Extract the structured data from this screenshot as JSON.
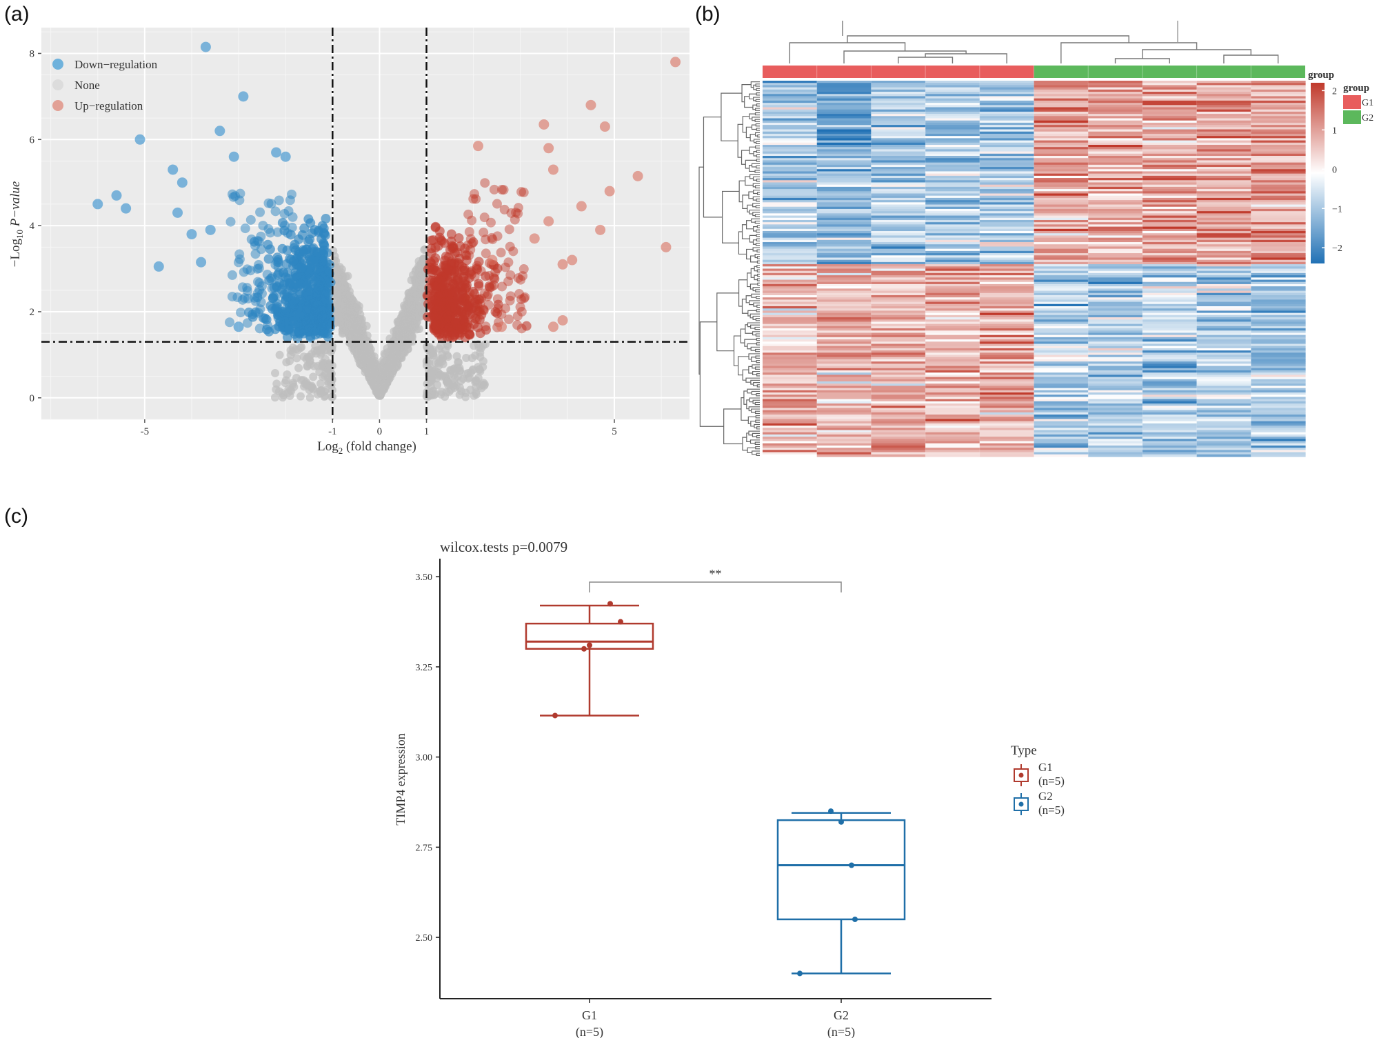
{
  "panel_labels": {
    "a": "(a)",
    "b": "(b)",
    "c": "(c)"
  },
  "chart_data": [
    {
      "id": "volcano",
      "type": "scatter",
      "title": "",
      "xlabel": "Log2 (fold change)",
      "xlabel_base": "Log",
      "xlabel_sub": "2",
      "xlabel_rest": " (fold change)",
      "ylabel": "-Log10 P-value",
      "ylabel_prefix": "−Log",
      "ylabel_sub": "10",
      "ylabel_italic": " P−value",
      "xlim": [
        -7.2,
        6.6
      ],
      "ylim": [
        -0.5,
        8.6
      ],
      "x_ticks": [
        -5,
        -1,
        0,
        1,
        5
      ],
      "x_tick_labels": [
        "-5",
        "-1",
        "0",
        "1",
        "5"
      ],
      "y_ticks": [
        0,
        2,
        4,
        6,
        8
      ],
      "y_tick_labels": [
        "0",
        "2",
        "4",
        "6",
        "8"
      ],
      "thresholds": {
        "log2fc": [
          -1,
          1
        ],
        "neg_log10_p": 1.3
      },
      "legend": [
        {
          "name": "Down−regulation",
          "color": "#2e86c1"
        },
        {
          "name": "None",
          "color": "#c8c8c8"
        },
        {
          "name": "Up−regulation",
          "color": "#d9705f"
        }
      ],
      "colors": {
        "down": "#2e86c1",
        "none": "#bdbdbd",
        "up": "#c0392b"
      },
      "highlight_points": [
        {
          "x": -3.7,
          "y": 8.15,
          "g": "down"
        },
        {
          "x": -2.9,
          "y": 7.0,
          "g": "down"
        },
        {
          "x": -3.4,
          "y": 6.2,
          "g": "down"
        },
        {
          "x": -5.1,
          "y": 6.0,
          "g": "down"
        },
        {
          "x": -4.4,
          "y": 5.3,
          "g": "down"
        },
        {
          "x": -4.2,
          "y": 5.0,
          "g": "down"
        },
        {
          "x": -5.6,
          "y": 4.7,
          "g": "down"
        },
        {
          "x": -6.0,
          "y": 4.5,
          "g": "down"
        },
        {
          "x": -5.4,
          "y": 4.4,
          "g": "down"
        },
        {
          "x": -4.3,
          "y": 4.3,
          "g": "down"
        },
        {
          "x": -4.0,
          "y": 3.8,
          "g": "down"
        },
        {
          "x": -3.6,
          "y": 3.9,
          "g": "down"
        },
        {
          "x": -3.8,
          "y": 3.15,
          "g": "down"
        },
        {
          "x": -4.7,
          "y": 3.05,
          "g": "down"
        },
        {
          "x": -2.2,
          "y": 5.7,
          "g": "down"
        },
        {
          "x": -2.0,
          "y": 5.6,
          "g": "down"
        },
        {
          "x": -3.1,
          "y": 5.6,
          "g": "down"
        },
        {
          "x": -3.0,
          "y": 1.65,
          "g": "down"
        },
        {
          "x": 6.3,
          "y": 7.8,
          "g": "up"
        },
        {
          "x": 4.5,
          "y": 6.8,
          "g": "up"
        },
        {
          "x": 4.8,
          "y": 6.3,
          "g": "up"
        },
        {
          "x": 3.5,
          "y": 6.35,
          "g": "up"
        },
        {
          "x": 3.6,
          "y": 5.8,
          "g": "up"
        },
        {
          "x": 3.7,
          "y": 5.3,
          "g": "up"
        },
        {
          "x": 5.5,
          "y": 5.15,
          "g": "up"
        },
        {
          "x": 4.9,
          "y": 4.8,
          "g": "up"
        },
        {
          "x": 4.3,
          "y": 4.45,
          "g": "up"
        },
        {
          "x": 3.6,
          "y": 4.1,
          "g": "up"
        },
        {
          "x": 4.7,
          "y": 3.9,
          "g": "up"
        },
        {
          "x": 6.1,
          "y": 3.5,
          "g": "up"
        },
        {
          "x": 4.1,
          "y": 3.2,
          "g": "up"
        },
        {
          "x": 3.9,
          "y": 3.1,
          "g": "up"
        },
        {
          "x": 3.3,
          "y": 3.7,
          "g": "up"
        },
        {
          "x": 2.1,
          "y": 5.85,
          "g": "up"
        },
        {
          "x": 3.9,
          "y": 1.8,
          "g": "up"
        },
        {
          "x": 3.7,
          "y": 1.65,
          "g": "up"
        },
        {
          "x": 2.6,
          "y": 1.65,
          "g": "up"
        },
        {
          "x": 2.4,
          "y": 3.2,
          "g": "up"
        }
      ]
    },
    {
      "id": "heatmap",
      "type": "heatmap",
      "title": "",
      "columns": 10,
      "rows": 170,
      "groups": [
        {
          "name": "G1",
          "color": "#e85d5d",
          "columns": [
            0,
            1,
            2,
            3,
            4
          ]
        },
        {
          "name": "G2",
          "color": "#5cb85c",
          "columns": [
            5,
            6,
            7,
            8,
            9
          ]
        }
      ],
      "annotation_title": "group",
      "legend_title": "group",
      "colorscale": {
        "min": -2.4,
        "max": 2.2,
        "low": "#2071b5",
        "mid": "#ffffff",
        "high": "#c0392b"
      },
      "colorbar_ticks": [
        2,
        1,
        0,
        -1,
        -2
      ],
      "colorbar_tick_labels": [
        "2",
        "1",
        "0",
        "−1",
        "−2"
      ]
    },
    {
      "id": "boxplot",
      "type": "box",
      "title": "wilcox.tests p=0.0079",
      "xlabel": "",
      "ylabel": "TIMP4 expression",
      "ylim": [
        2.33,
        3.55
      ],
      "y_ticks": [
        2.5,
        2.75,
        3.0,
        3.25,
        3.5
      ],
      "y_tick_labels": [
        "2.50",
        "2.75",
        "3.00",
        "3.25",
        "3.50"
      ],
      "categories": [
        "G1",
        "G2"
      ],
      "category_sublabels": [
        "(n=5)",
        "(n=5)"
      ],
      "significance": "**",
      "legend_title": "Type",
      "series": [
        {
          "name": "G1",
          "sublabel": "(n=5)",
          "color": "#b03a2e",
          "min": 3.115,
          "q1": 3.3,
          "median": 3.32,
          "q3": 3.37,
          "max": 3.42,
          "points": [
            3.425,
            3.375,
            3.31,
            3.3,
            3.115
          ]
        },
        {
          "name": "G2",
          "sublabel": "(n=5)",
          "color": "#1f6fa8",
          "min": 2.4,
          "q1": 2.55,
          "median": 2.7,
          "q3": 2.825,
          "max": 2.845,
          "points": [
            2.85,
            2.82,
            2.7,
            2.55,
            2.4
          ]
        }
      ]
    }
  ]
}
